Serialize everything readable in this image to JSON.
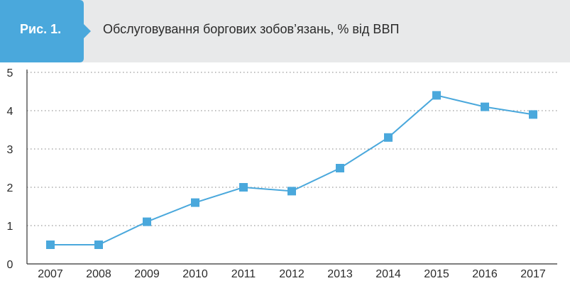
{
  "figure": {
    "label": "Рис. 1.",
    "title": "Обслуговування боргових зобов’язань, % від ВВП"
  },
  "colors": {
    "accent": "#4aa8dc",
    "line": "#4aa8dc",
    "marker": "#4aa8dc",
    "header_background": "#e8e9ea",
    "grid": "#9a9a9a",
    "axis": "#333333"
  },
  "chart_data": {
    "type": "line",
    "title": "Обслуговування боргових зобов’язань, % від ВВП",
    "xlabel": "",
    "ylabel": "",
    "categories": [
      "2007",
      "2008",
      "2009",
      "2010",
      "2011",
      "2012",
      "2013",
      "2014",
      "2015",
      "2016",
      "2017"
    ],
    "series": [
      {
        "values": [
          0.5,
          0.5,
          1.1,
          1.6,
          2.0,
          1.9,
          2.5,
          3.3,
          4.4,
          4.1,
          3.9
        ]
      }
    ],
    "ylim": [
      0,
      5
    ],
    "y_ticks": [
      "0",
      "1",
      "2",
      "3",
      "4",
      "5"
    ],
    "grid": "horizontal dotted",
    "legend": "none"
  }
}
